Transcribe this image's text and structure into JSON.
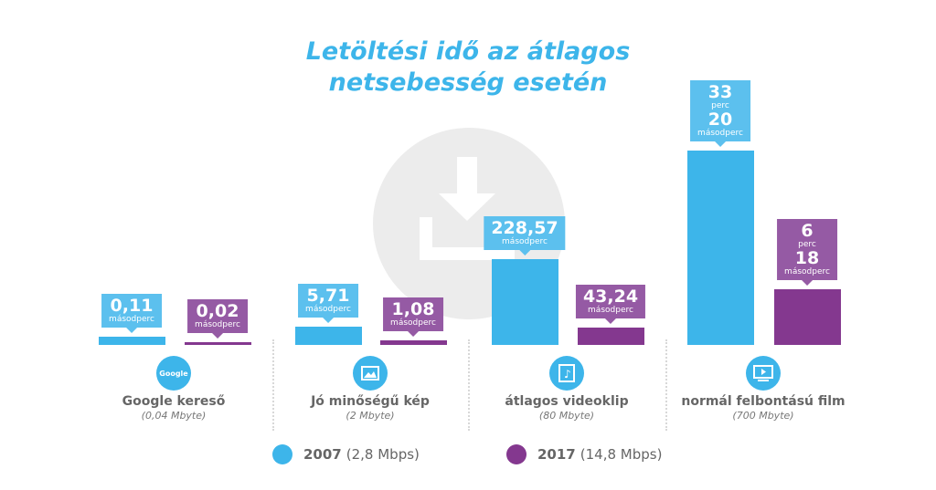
{
  "chart_data": {
    "type": "bar",
    "title": [
      "Letöltési idő az átlagos",
      "netsebesség esetén"
    ],
    "categories": [
      {
        "name": "Google kereső",
        "size": "(0,04 Mbyte)",
        "icon": "google-icon"
      },
      {
        "name": "Jó minőségű kép",
        "size": "(2 Mbyte)",
        "icon": "image-icon"
      },
      {
        "name": "átlagos videoklip",
        "size": "(80 Mbyte)",
        "icon": "music-video-icon"
      },
      {
        "name": "normál felbontású film",
        "size": "(700 Mbyte)",
        "icon": "video-screen-icon"
      }
    ],
    "series": [
      {
        "name": "2007",
        "detail": "(2,8 Mbps)",
        "color": "#3db5ea",
        "values_seconds": [
          0.11,
          5.71,
          228.57,
          2000
        ],
        "labels": [
          [
            "0,11",
            "másodperc"
          ],
          [
            "5,71",
            "másodperc"
          ],
          [
            "228,57",
            "másodperc"
          ],
          [
            "33",
            "perc",
            "20",
            "másodperc"
          ]
        ]
      },
      {
        "name": "2017",
        "detail": "(14,8 Mbps)",
        "color": "#84388f",
        "values_seconds": [
          0.02,
          1.08,
          43.24,
          378
        ],
        "labels": [
          [
            "0,02",
            "másodperc"
          ],
          [
            "1,08",
            "másodperc"
          ],
          [
            "43,24",
            "másodperc"
          ],
          [
            "6",
            "perc",
            "18",
            "másodperc"
          ]
        ]
      }
    ],
    "google_logo_text": "Google",
    "legend_position": "bottom"
  }
}
